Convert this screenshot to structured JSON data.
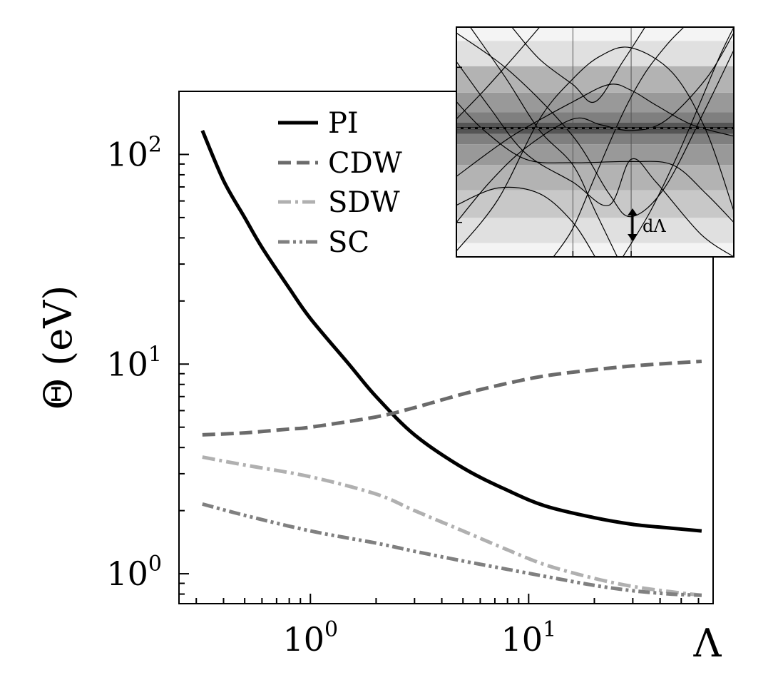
{
  "chart_data": [
    {
      "type": "line",
      "xscale": "log",
      "yscale": "log",
      "xlabel": "Λ",
      "ylabel": "Θ (eV)",
      "xlim": [
        0.25,
        70
      ],
      "ylim": [
        0.72,
        200
      ],
      "xticks": [
        {
          "base": "10",
          "exp": "0",
          "value": 1
        },
        {
          "base": "10",
          "exp": "1",
          "value": 10
        }
      ],
      "yticks": [
        {
          "base": "10",
          "exp": "0",
          "value": 1
        },
        {
          "base": "10",
          "exp": "1",
          "value": 10
        },
        {
          "base": "10",
          "exp": "2",
          "value": 100
        }
      ],
      "legend_position": "upper-left",
      "series": [
        {
          "name": "PI",
          "style": "solid",
          "color": "#000000",
          "x": [
            0.32,
            0.4,
            0.5,
            0.6,
            0.8,
            1.0,
            1.5,
            2.0,
            3.0,
            5.0,
            8.0,
            12.0,
            20.0,
            30.0,
            45.0,
            62.0
          ],
          "y": [
            130,
            75,
            50,
            36,
            23,
            16.5,
            10,
            7.0,
            4.6,
            3.2,
            2.5,
            2.1,
            1.85,
            1.72,
            1.65,
            1.6
          ]
        },
        {
          "name": "CDW",
          "style": "dashed",
          "color": "#6b6b6b",
          "x": [
            0.32,
            0.5,
            0.8,
            1.0,
            2.0,
            3.0,
            5.0,
            8.0,
            12.0,
            20.0,
            30.0,
            45.0,
            62.0
          ],
          "y": [
            4.6,
            4.7,
            4.9,
            5.0,
            5.6,
            6.2,
            7.2,
            8.1,
            8.8,
            9.4,
            9.8,
            10.1,
            10.3
          ]
        },
        {
          "name": "SDW",
          "style": "dash-dot",
          "color": "#b0b0b0",
          "x": [
            0.32,
            0.5,
            1.0,
            2.0,
            3.0,
            5.0,
            8.0,
            12.0,
            20.0,
            30.0,
            45.0,
            62.0
          ],
          "y": [
            3.6,
            3.3,
            2.9,
            2.4,
            2.0,
            1.6,
            1.3,
            1.1,
            0.95,
            0.87,
            0.82,
            0.79
          ]
        },
        {
          "name": "SC",
          "style": "dash-dot-dot",
          "color": "#808080",
          "x": [
            0.32,
            0.5,
            1.0,
            2.0,
            3.0,
            5.0,
            8.0,
            12.0,
            20.0,
            30.0,
            45.0,
            62.0
          ],
          "y": [
            2.15,
            1.9,
            1.6,
            1.4,
            1.28,
            1.15,
            1.05,
            0.97,
            0.88,
            0.83,
            0.8,
            0.79
          ]
        }
      ]
    },
    {
      "type": "line",
      "title": "",
      "annotation": "dΛ",
      "xlim": [
        0,
        1
      ],
      "ylim": [
        -1,
        1
      ],
      "vlines": [
        0.42,
        0.63
      ],
      "center_line": 0.12,
      "bands": [
        {
          "lo": -1.0,
          "hi": -0.88,
          "color": "#f4f4f4"
        },
        {
          "lo": -0.88,
          "hi": -0.66,
          "color": "#e0e0e0"
        },
        {
          "lo": -0.66,
          "hi": -0.42,
          "color": "#c8c8c8"
        },
        {
          "lo": -0.42,
          "hi": -0.2,
          "color": "#b3b3b3"
        },
        {
          "lo": -0.2,
          "hi": -0.02,
          "color": "#999999"
        },
        {
          "lo": -0.02,
          "hi": 0.07,
          "color": "#7f7f7f"
        },
        {
          "lo": 0.07,
          "hi": 0.17,
          "color": "#555555"
        },
        {
          "lo": 0.17,
          "hi": 0.26,
          "color": "#7f7f7f"
        },
        {
          "lo": 0.26,
          "hi": 0.43,
          "color": "#999999"
        },
        {
          "lo": 0.43,
          "hi": 0.66,
          "color": "#b3b3b3"
        },
        {
          "lo": 0.66,
          "hi": 0.88,
          "color": "#e0e0e0"
        },
        {
          "lo": 0.88,
          "hi": 1.0,
          "color": "#f4f4f4"
        }
      ],
      "bands_curves": [
        [
          [
            0.0,
            0.95
          ],
          [
            0.2,
            0.6
          ],
          [
            0.42,
            0.05
          ],
          [
            0.55,
            -0.45
          ],
          [
            0.63,
            -0.65
          ],
          [
            0.75,
            -0.4
          ],
          [
            0.9,
            0.3
          ],
          [
            1.0,
            0.8
          ]
        ],
        [
          [
            0.0,
            -0.95
          ],
          [
            0.15,
            -0.5
          ],
          [
            0.3,
            0.2
          ],
          [
            0.42,
            0.55
          ],
          [
            0.52,
            0.75
          ],
          [
            0.63,
            0.82
          ],
          [
            0.78,
            0.6
          ],
          [
            0.9,
            0.1
          ],
          [
            1.0,
            -0.6
          ]
        ],
        [
          [
            0.0,
            0.7
          ],
          [
            0.12,
            0.3
          ],
          [
            0.25,
            -0.1
          ],
          [
            0.42,
            -0.35
          ],
          [
            0.55,
            -0.55
          ],
          [
            0.63,
            -0.15
          ],
          [
            0.72,
            -0.35
          ],
          [
            0.88,
            -0.8
          ],
          [
            1.0,
            -1.0
          ]
        ],
        [
          [
            0.0,
            -0.7
          ],
          [
            0.12,
            -0.35
          ],
          [
            0.25,
            -0.05
          ],
          [
            0.42,
            0.2
          ],
          [
            0.52,
            0.15
          ],
          [
            0.63,
            0.1
          ],
          [
            0.75,
            0.18
          ],
          [
            0.9,
            0.55
          ],
          [
            1.0,
            0.95
          ]
        ],
        [
          [
            0.0,
            0.35
          ],
          [
            0.1,
            0.1
          ],
          [
            0.25,
            -0.15
          ],
          [
            0.42,
            -0.18
          ],
          [
            0.63,
            -0.17
          ],
          [
            0.78,
            -0.2
          ],
          [
            0.9,
            -0.45
          ],
          [
            1.0,
            -0.7
          ]
        ],
        [
          [
            0.0,
            -0.3
          ],
          [
            0.2,
            0.05
          ],
          [
            0.42,
            0.35
          ],
          [
            0.55,
            0.5
          ],
          [
            0.63,
            0.45
          ],
          [
            0.72,
            0.32
          ],
          [
            0.85,
            0.15
          ],
          [
            1.0,
            0.05
          ]
        ],
        [
          [
            0.05,
            1.0
          ],
          [
            0.18,
            0.55
          ],
          [
            0.3,
            0.1
          ],
          [
            0.42,
            -0.2
          ],
          [
            0.5,
            -0.6
          ],
          [
            0.58,
            -1.0
          ]
        ],
        [
          [
            0.35,
            -1.0
          ],
          [
            0.42,
            -0.75
          ],
          [
            0.5,
            -0.3
          ],
          [
            0.6,
            0.25
          ],
          [
            0.68,
            0.6
          ],
          [
            0.76,
            0.85
          ],
          [
            0.82,
            1.0
          ]
        ],
        [
          [
            0.2,
            1.0
          ],
          [
            0.3,
            0.72
          ],
          [
            0.42,
            0.5
          ],
          [
            0.5,
            0.35
          ],
          [
            0.6,
            0.7
          ],
          [
            0.68,
            1.0
          ]
        ],
        [
          [
            0.0,
            -0.55
          ],
          [
            0.15,
            -0.4
          ],
          [
            0.3,
            -0.45
          ],
          [
            0.42,
            -0.7
          ],
          [
            0.5,
            -1.0
          ]
        ],
        [
          [
            0.6,
            -1.0
          ],
          [
            0.7,
            -0.6
          ],
          [
            0.8,
            -0.1
          ],
          [
            0.88,
            0.35
          ],
          [
            0.95,
            0.75
          ],
          [
            1.0,
            1.0
          ]
        ],
        [
          [
            0.0,
            0.2
          ],
          [
            0.1,
            0.45
          ],
          [
            0.2,
            0.72
          ],
          [
            0.3,
            1.0
          ]
        ]
      ]
    }
  ]
}
